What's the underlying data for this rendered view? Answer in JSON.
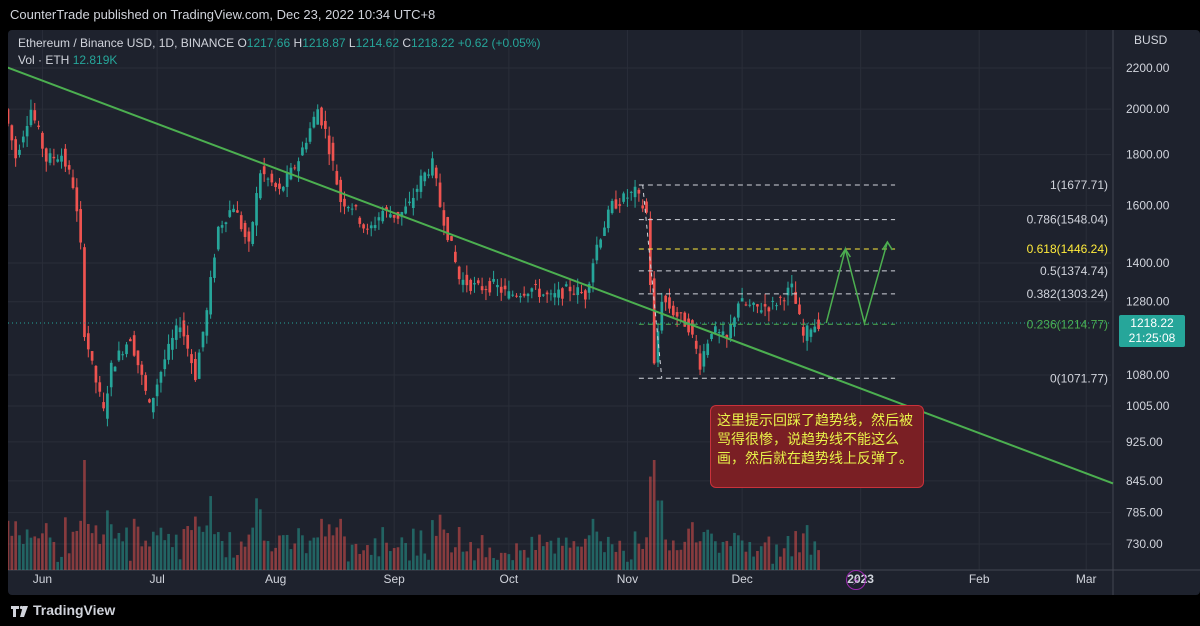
{
  "header": {
    "publish_line": "CounterTrade published on TradingView.com, Dec 23, 2022 10:34 UTC+8",
    "symbol": "Ethereum / Binance USD, 1D, BINANCE",
    "o_label": "O",
    "o_value": "1217.66",
    "h_label": "H",
    "h_value": "1218.87",
    "l_label": "L",
    "l_value": "1214.62",
    "c_label": "C",
    "c_value": "1218.22",
    "change": "+0.62 (+0.05%)",
    "vol_label": "Vol · ETH",
    "vol_value": "12.819K"
  },
  "footer": {
    "brand": "TradingView"
  },
  "annotation": {
    "text": "这里提示回踩了趋势线，然后被骂得很惨，说趋势线不能这么画，然后就在趋势线上反弹了。"
  },
  "current_price": {
    "price": "1218.22",
    "countdown": "21:25:08"
  },
  "colors": {
    "up": "#26a69a",
    "down": "#ef5350",
    "trendline": "#4caf50",
    "fib_white": "#d1d4dc",
    "fib_yellow": "#ffeb3b",
    "fib_green": "#4caf50"
  },
  "icons": {
    "bolt": "lightning-icon",
    "logo": "tradingview-logo"
  },
  "chart_data": {
    "type": "candlestick",
    "title": "Ethereum / Binance USD, 1D, BINANCE",
    "y_axis_label": "BUSD",
    "y_scale": "log",
    "ylim": [
      700,
      2330
    ],
    "y_ticks": [
      "2200.00",
      "2000.00",
      "1800.00",
      "1600.00",
      "1400.00",
      "1280.00",
      "1080.00",
      "1005.00",
      "925.00",
      "845.00",
      "785.00",
      "730.00"
    ],
    "x_ticks": [
      "Jun",
      "Jul",
      "Aug",
      "Sep",
      "Oct",
      "Nov",
      "Dec",
      "2023",
      "Feb",
      "Mar"
    ],
    "x_range": [
      "2022-05-23",
      "2023-03-08"
    ],
    "price_series": [
      [
        "2022-05-23",
        2000
      ],
      [
        "2022-05-26",
        1790
      ],
      [
        "2022-05-30",
        2000
      ],
      [
        "2022-06-03",
        1780
      ],
      [
        "2022-06-07",
        1800
      ],
      [
        "2022-06-10",
        1680
      ],
      [
        "2022-06-12",
        1450
      ],
      [
        "2022-06-13",
        1200
      ],
      [
        "2022-06-15",
        1100
      ],
      [
        "2022-06-18",
        990
      ],
      [
        "2022-06-20",
        1100
      ],
      [
        "2022-06-25",
        1180
      ],
      [
        "2022-06-30",
        1000
      ],
      [
        "2022-07-04",
        1120
      ],
      [
        "2022-07-08",
        1220
      ],
      [
        "2022-07-12",
        1080
      ],
      [
        "2022-07-15",
        1250
      ],
      [
        "2022-07-18",
        1520
      ],
      [
        "2022-07-22",
        1600
      ],
      [
        "2022-07-26",
        1450
      ],
      [
        "2022-07-29",
        1730
      ],
      [
        "2022-08-03",
        1650
      ],
      [
        "2022-08-08",
        1780
      ],
      [
        "2022-08-13",
        2000
      ],
      [
        "2022-08-15",
        1900
      ],
      [
        "2022-08-19",
        1620
      ],
      [
        "2022-08-22",
        1600
      ],
      [
        "2022-08-26",
        1500
      ],
      [
        "2022-08-30",
        1580
      ],
      [
        "2022-09-03",
        1560
      ],
      [
        "2022-09-06",
        1600
      ],
      [
        "2022-09-09",
        1700
      ],
      [
        "2022-09-12",
        1760
      ],
      [
        "2022-09-14",
        1600
      ],
      [
        "2022-09-19",
        1350
      ],
      [
        "2022-09-24",
        1320
      ],
      [
        "2022-09-28",
        1330
      ],
      [
        "2022-10-02",
        1300
      ],
      [
        "2022-10-08",
        1320
      ],
      [
        "2022-10-13",
        1290
      ],
      [
        "2022-10-18",
        1320
      ],
      [
        "2022-10-22",
        1300
      ],
      [
        "2022-10-25",
        1460
      ],
      [
        "2022-10-29",
        1600
      ],
      [
        "2022-11-04",
        1650
      ],
      [
        "2022-11-07",
        1570
      ],
      [
        "2022-11-08",
        1340
      ],
      [
        "2022-11-09",
        1100
      ],
      [
        "2022-11-11",
        1290
      ],
      [
        "2022-11-14",
        1250
      ],
      [
        "2022-11-18",
        1210
      ],
      [
        "2022-11-21",
        1110
      ],
      [
        "2022-11-24",
        1200
      ],
      [
        "2022-11-28",
        1170
      ],
      [
        "2022-12-01",
        1280
      ],
      [
        "2022-12-05",
        1260
      ],
      [
        "2022-12-10",
        1270
      ],
      [
        "2022-12-15",
        1320
      ],
      [
        "2022-12-18",
        1180
      ],
      [
        "2022-12-20",
        1210
      ],
      [
        "2022-12-22",
        1218
      ]
    ],
    "volume_note": "volume histogram shown at bottom of pane",
    "trendline": {
      "from": [
        "2022-05-06",
        2330
      ],
      "to": [
        "2023-03-08",
        840
      ]
    },
    "fibonacci": [
      {
        "ratio": "1",
        "price": 1677.71,
        "label": "1(1677.71)",
        "color": "#d1d4dc"
      },
      {
        "ratio": "0.786",
        "price": 1548.04,
        "label": "0.786(1548.04)",
        "color": "#d1d4dc"
      },
      {
        "ratio": "0.618",
        "price": 1446.24,
        "label": "0.618(1446.24)",
        "color": "#ffeb3b"
      },
      {
        "ratio": "0.5",
        "price": 1374.74,
        "label": "0.5(1374.74)",
        "color": "#d1d4dc"
      },
      {
        "ratio": "0.382",
        "price": 1303.24,
        "label": "0.382(1303.24)",
        "color": "#d1d4dc"
      },
      {
        "ratio": "0.236",
        "price": 1214.77,
        "label": "0.236(1214.77)",
        "color": "#4caf50"
      },
      {
        "ratio": "0",
        "price": 1071.77,
        "label": "0(1071.77)",
        "color": "#d1d4dc"
      }
    ],
    "projection_path": [
      [
        "2022-12-23",
        1218
      ],
      [
        "2022-12-28",
        1446
      ],
      [
        "2023-01-02",
        1218
      ],
      [
        "2023-01-08",
        1470
      ]
    ],
    "legend": "none"
  }
}
